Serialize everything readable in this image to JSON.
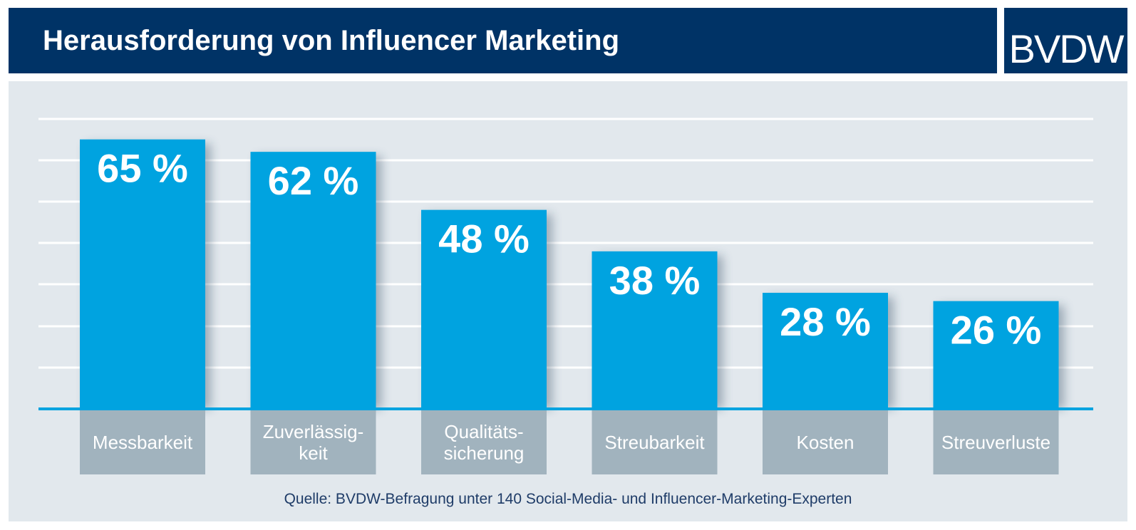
{
  "header": {
    "title": "Herausforderung von Influencer Marketing"
  },
  "logo": {
    "text": "BVDW"
  },
  "footer": {
    "source": "Quelle: BVDW-Befragung unter 140 Social-Media- und Influencer-Marketing-Experten"
  },
  "colors": {
    "header_bg": "#003366",
    "panel_bg": "#e2e8ed",
    "bar": "#00a3e0",
    "label_box": "#a1b3be",
    "source_text": "#1f3c68"
  },
  "chart_data": {
    "type": "bar",
    "title": "Herausforderung von Influencer Marketing",
    "categories": [
      [
        "Messbarkeit"
      ],
      [
        "Zuverlässig-",
        "keit"
      ],
      [
        "Qualitäts-",
        "sicherung"
      ],
      [
        "Streubarkeit"
      ],
      [
        "Kosten"
      ],
      [
        "Streuverluste"
      ]
    ],
    "values": [
      65,
      62,
      48,
      38,
      28,
      26
    ],
    "value_labels": [
      "65 %",
      "62 %",
      "48 %",
      "38 %",
      "28 %",
      "26 %"
    ],
    "unit": "%",
    "ylim": [
      0,
      70
    ],
    "gridlines": [
      10,
      20,
      30,
      40,
      50,
      60,
      70
    ],
    "grid": true,
    "legend": false
  }
}
